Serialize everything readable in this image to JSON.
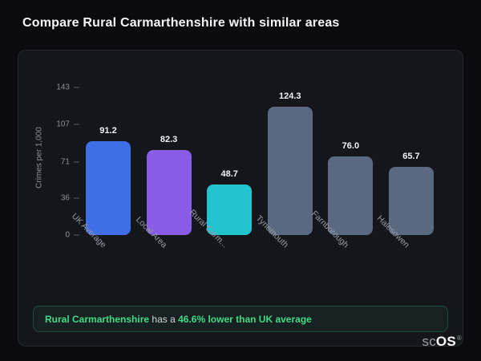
{
  "page": {
    "title": "Compare Rural Carmarthenshire with similar areas"
  },
  "chart_data": {
    "type": "bar",
    "title": "Compare Rural Carmarthenshire with similar areas",
    "xlabel": "",
    "ylabel": "Crimes per 1,000",
    "categories": [
      "UK Average",
      "Local Area",
      "Rural Carm...",
      "Tynemouth",
      "Farnborough",
      "Halesowen"
    ],
    "values": [
      91.2,
      82.3,
      48.7,
      124.3,
      76.0,
      65.7
    ],
    "value_labels": [
      "91.2",
      "82.3",
      "48.7",
      "124.3",
      "76.0",
      "65.7"
    ],
    "bar_colors": [
      "#3e6fe8",
      "#8a5ce6",
      "#22c4cf",
      "#5a6880",
      "#5a6880",
      "#5a6880"
    ],
    "ylim": [
      0,
      143
    ],
    "yticks": [
      0,
      36,
      71,
      107,
      143
    ],
    "grid": false,
    "legend": "none"
  },
  "note": {
    "highlight_area": "Rural Carmarthenshire",
    "middle": " has a ",
    "highlight_stat": "46.6% lower than UK average"
  },
  "logo": {
    "prefix": "sc",
    "suffix": "OS",
    "reg": "®"
  },
  "colors": {
    "accent_green": "#3ddc84",
    "page_background": "#0b0b0f",
    "card_background": "#15161c",
    "axis_text": "#8a8f99"
  }
}
